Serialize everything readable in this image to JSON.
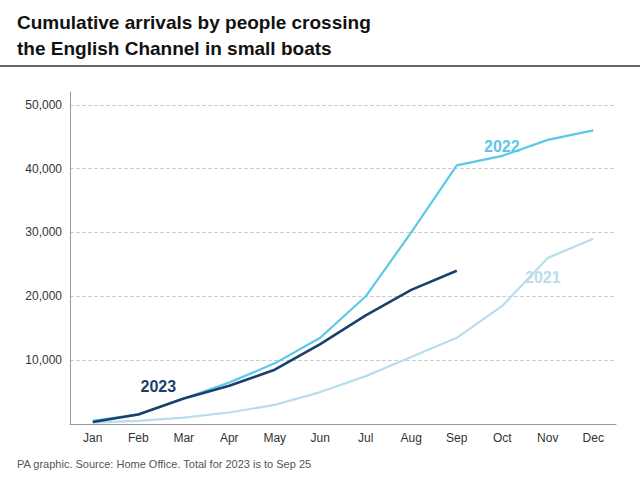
{
  "chart_data": {
    "type": "line",
    "title": "Cumulative arrivals by people crossing",
    "subtitle": "the English Channel in small boats",
    "source": "PA graphic. Source: Home Office. Total for 2023 is to Sep 25",
    "categories": [
      "Jan",
      "Feb",
      "Mar",
      "Apr",
      "May",
      "Jun",
      "Jul",
      "Aug",
      "Sep",
      "Oct",
      "Nov",
      "Dec"
    ],
    "series": [
      {
        "name": "2022",
        "color": "#5bc8e8",
        "values": [
          500,
          1500,
          4000,
          6500,
          9500,
          13500,
          20000,
          30000,
          40500,
          42000,
          44500,
          46000
        ]
      },
      {
        "name": "2021",
        "color": "#b8dded",
        "values": [
          200,
          500,
          1000,
          1800,
          3000,
          5000,
          7500,
          10500,
          13500,
          18500,
          26000,
          29000
        ]
      },
      {
        "name": "2023",
        "color": "#1b3f6e",
        "values": [
          300,
          1500,
          4000,
          6000,
          8500,
          12500,
          17000,
          21000,
          24000,
          null,
          null,
          null
        ]
      }
    ],
    "annotations": [
      {
        "text": "2022",
        "x": 8.6,
        "y": 43500,
        "color": "#5bc8e8"
      },
      {
        "text": "2021",
        "x": 9.5,
        "y": 23000,
        "color": "#b8dded"
      },
      {
        "text": "2023",
        "x": 1.05,
        "y": 5800,
        "color": "#1b3f6e"
      }
    ],
    "ylim": [
      0,
      52000
    ],
    "yticks": [
      {
        "value": 10000,
        "label": "10,000"
      },
      {
        "value": 20000,
        "label": "20,000"
      },
      {
        "value": 30000,
        "label": "30,000"
      },
      {
        "value": 40000,
        "label": "40,000"
      },
      {
        "value": 50000,
        "label": "50,000"
      }
    ],
    "grid": true,
    "grid_color": "#cccccc"
  }
}
